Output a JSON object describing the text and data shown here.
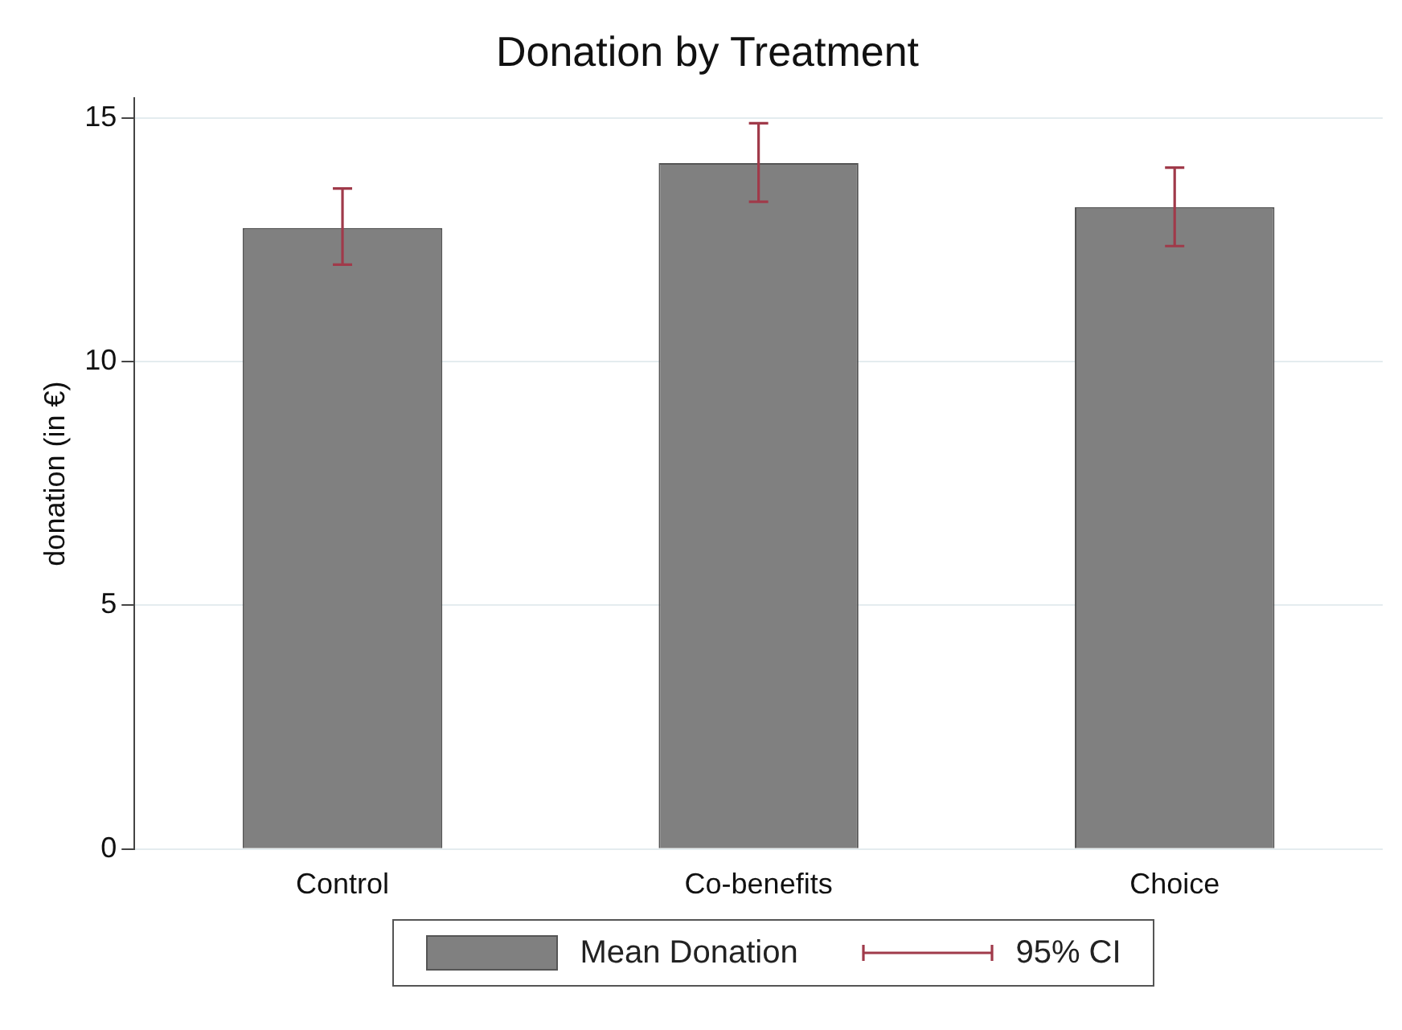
{
  "chart_data": {
    "type": "bar",
    "title": "Donation by Treatment",
    "ylabel": "donation (in €)",
    "categories": [
      "Control",
      "Co-benefits",
      "Choice"
    ],
    "series": [
      {
        "name": "Mean Donation",
        "color": "#808080",
        "values": [
          12.74,
          14.07,
          13.17
        ],
        "errors": [
          [
            11.99,
            13.55
          ],
          [
            13.28,
            14.89
          ],
          [
            12.37,
            13.98
          ]
        ]
      }
    ],
    "annotations": [
      "95% CI"
    ],
    "ylim": [
      0,
      15.4
    ],
    "yticks": [
      0,
      5,
      10,
      15
    ],
    "grid": "y",
    "legend": "bottom"
  }
}
